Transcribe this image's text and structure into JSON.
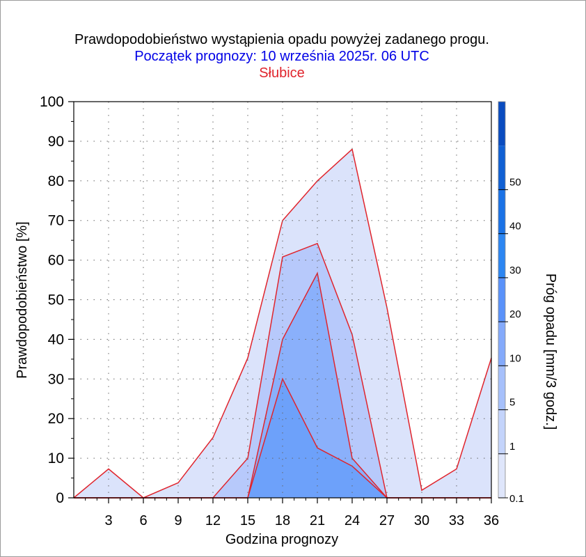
{
  "chart_data": {
    "type": "area",
    "title": "Prawdopodobieństwo wystąpienia opadu powyżej zadanego progu.",
    "subtitle": "Początek prognozy: 10 września 2025r. 06 UTC",
    "location": "Słubice",
    "xlabel": "Godzina prognozy",
    "ylabel": "Prawdopodobieństwo [%]",
    "colorbar_label": "Próg opadu [mm/3 godz.]",
    "xlim": [
      0,
      36
    ],
    "ylim": [
      0,
      100
    ],
    "x_ticks": [
      3,
      6,
      9,
      12,
      15,
      18,
      21,
      24,
      27,
      30,
      33,
      36
    ],
    "y_ticks": [
      0,
      10,
      20,
      30,
      40,
      50,
      60,
      70,
      80,
      90,
      100
    ],
    "grid": true,
    "colorbar_ticks": [
      "0.1",
      "1",
      "5",
      "10",
      "20",
      "30",
      "40",
      "50"
    ],
    "colorbar_colors": [
      "#dfe6fb",
      "#c4d4fb",
      "#a6c0fb",
      "#84aafb",
      "#5a92fa",
      "#2c86f2",
      "#1a72e6",
      "#1060d4",
      "#0a4cc0"
    ],
    "line_color": "#e0242c",
    "x": [
      0,
      3,
      6,
      9,
      12,
      15,
      18,
      21,
      24,
      27,
      30,
      33,
      36
    ],
    "series": [
      {
        "name": "0.1",
        "color": "#dbe3fb",
        "values": [
          0,
          7.3,
          0,
          3.8,
          15.2,
          35.3,
          70,
          80,
          88,
          48,
          1.9,
          7.3,
          35.3
        ]
      },
      {
        "name": "1",
        "color": "#b7c9fb",
        "values": [
          0,
          0,
          0,
          0,
          0,
          10,
          60.8,
          64.2,
          41.2,
          0,
          0,
          0,
          0
        ]
      },
      {
        "name": "5",
        "color": "#8ab0fb",
        "values": [
          0,
          0,
          0,
          0,
          0,
          0,
          40,
          56.7,
          10,
          0,
          0,
          0,
          0
        ]
      },
      {
        "name": "10",
        "color": "#6da1fa",
        "values": [
          0,
          0,
          0,
          0,
          0,
          0,
          30,
          12.6,
          8,
          0,
          0,
          0,
          0
        ]
      }
    ]
  }
}
